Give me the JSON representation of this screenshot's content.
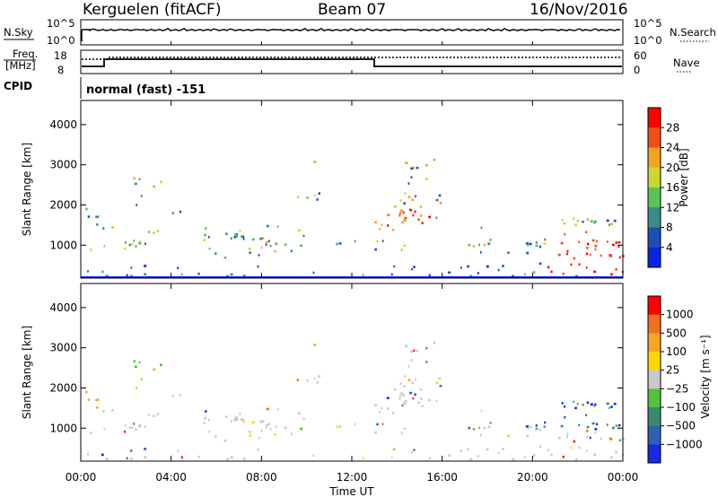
{
  "header": {
    "station": "Kerguelen (fitACF)",
    "beam": "Beam 07",
    "date": "16/Nov/2016"
  },
  "panels": {
    "nsky": {
      "label": "N.Sky",
      "right_label": "N.Search",
      "ticks_left": [
        "10^5",
        "10^0"
      ],
      "ticks_right": [
        "10^5",
        "10^0"
      ]
    },
    "freq": {
      "label_1": "Freq.",
      "label_2": "[MHz]",
      "right_label": "Nave",
      "ticks_left": [
        "18",
        "8"
      ],
      "ticks_right": [
        "60",
        "0"
      ]
    },
    "cpid": {
      "label": "CPID",
      "text": "normal (fast) -151"
    }
  },
  "chart_data": [
    {
      "type": "heatmap",
      "quantity": "Power",
      "ylabel": "Slant Range [km]",
      "ylim": [
        180,
        4600
      ],
      "yticks": [
        "4000",
        "3000",
        "2000",
        "1000"
      ],
      "colorbar_label": "Power [dB]",
      "colorbar_ticks": [
        "28",
        "24",
        "20",
        "16",
        "12",
        "8",
        "4"
      ],
      "colors": [
        "#0a22e8",
        "#1d4fb2",
        "#3a8d86",
        "#5cc25a",
        "#c8d830",
        "#f0a422",
        "#f05018",
        "#ff0000"
      ]
    },
    {
      "type": "heatmap",
      "quantity": "Velocity",
      "ylabel": "Slant Range [km]",
      "ylim": [
        180,
        4600
      ],
      "yticks": [
        "4000",
        "3000",
        "2000",
        "1000"
      ],
      "colorbar_label": "Velocity [m s⁻¹]",
      "colorbar_ticks": [
        "1000",
        "500",
        "100",
        "25",
        "−25",
        "−100",
        "−500",
        "−1000"
      ],
      "colors": [
        "#1a2ae0",
        "#2d62b3",
        "#3a8a6e",
        "#52c23e",
        "#c8c8c8",
        "#ffd700",
        "#f5a623",
        "#f07020",
        "#ff0000"
      ]
    }
  ],
  "time_axis": {
    "xlabel": "Time UT",
    "ticks": [
      "00:00",
      "04:00",
      "08:00",
      "12:00",
      "16:00",
      "20:00",
      "00:00"
    ]
  }
}
